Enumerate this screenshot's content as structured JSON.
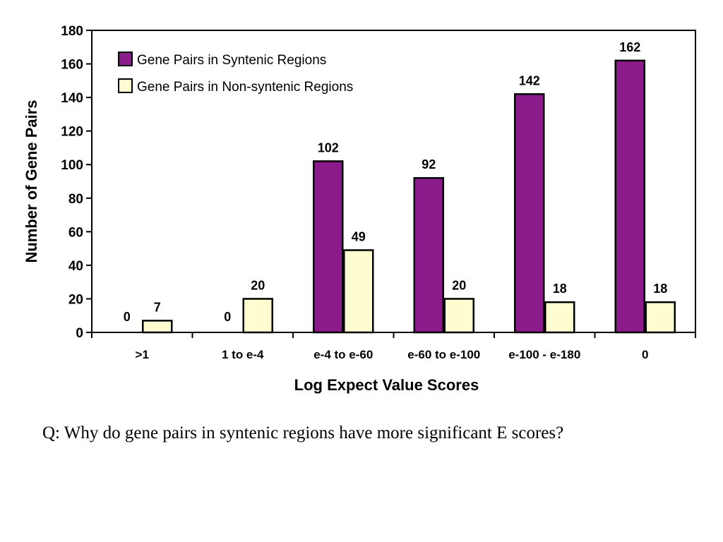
{
  "chart_data": {
    "type": "bar",
    "ylabel": "Number of Gene Pairs",
    "xlabel": "Log Expect Value Scores",
    "ylim": [
      0,
      180
    ],
    "yticks": [
      0,
      20,
      40,
      60,
      80,
      100,
      120,
      140,
      160,
      180
    ],
    "categories": [
      ">1",
      "1 to e-4",
      "e-4 to e-60",
      "e-60 to e-100",
      "e-100 - e-180",
      "0"
    ],
    "series": [
      {
        "name": "Gene Pairs in Syntenic Regions",
        "values": [
          0,
          0,
          102,
          92,
          142,
          162
        ],
        "color": "#8b1a8b"
      },
      {
        "name": "Gene Pairs in Non-syntenic Regions",
        "values": [
          7,
          20,
          49,
          20,
          18,
          18
        ],
        "color": "#fdfdcf"
      }
    ],
    "legend_position": "top-left",
    "grid": false
  },
  "question": "Q: Why do gene pairs in syntenic regions have more significant E scores?"
}
